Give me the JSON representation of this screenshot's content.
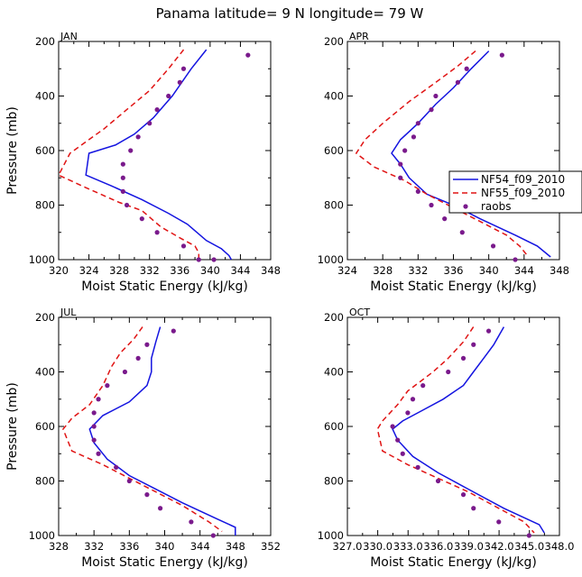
{
  "figure": {
    "title": "Panama  latitude= 9 N longitude= 79 W",
    "xlabel": "Moist Static Energy (kJ/kg)",
    "ylabel": "Pressure (mb)"
  },
  "legend": {
    "entries": [
      {
        "name": "NF54_f09_2010",
        "color": "#1414e0",
        "style": "solid"
      },
      {
        "name": "NF55_f09_2010",
        "color": "#e01414",
        "style": "dashed"
      },
      {
        "name": "raobs",
        "color": "#7a1a8c",
        "style": "dots"
      }
    ]
  },
  "chart_data": [
    {
      "type": "line",
      "panel": "JAN",
      "xlim": [
        320,
        348
      ],
      "ylim": [
        1000,
        200
      ],
      "xticks": [
        320,
        324,
        328,
        332,
        336,
        340,
        344,
        348
      ],
      "xtick_labels": [
        "320",
        "324",
        "328",
        "332",
        "336",
        "340",
        "344",
        "348"
      ],
      "yticks": [
        200,
        400,
        600,
        800,
        1000
      ],
      "ytick_labels": [
        "200",
        "400",
        "600",
        "800",
        "1000"
      ],
      "series": [
        {
          "name": "NF54_f09_2010",
          "points": [
            [
              339.5,
              230
            ],
            [
              337.5,
              300
            ],
            [
              335,
              400
            ],
            [
              332.5,
              480
            ],
            [
              330,
              540
            ],
            [
              327.5,
              580
            ],
            [
              324,
              610
            ],
            [
              323.6,
              690
            ],
            [
              327,
              730
            ],
            [
              331,
              780
            ],
            [
              334.5,
              830
            ],
            [
              337,
              870
            ],
            [
              339.5,
              930
            ],
            [
              341.5,
              960
            ],
            [
              342.5,
              985
            ],
            [
              342.8,
              1000
            ]
          ]
        },
        {
          "name": "NF55_f09_2010",
          "points": [
            [
              336.5,
              230
            ],
            [
              334.5,
              300
            ],
            [
              332,
              380
            ],
            [
              329,
              450
            ],
            [
              326,
              520
            ],
            [
              323,
              580
            ],
            [
              321.5,
              610
            ],
            [
              320,
              690
            ],
            [
              323.5,
              735
            ],
            [
              328,
              790
            ],
            [
              331,
              820
            ],
            [
              333.5,
              880
            ],
            [
              336,
              920
            ],
            [
              338,
              950
            ],
            [
              338.5,
              975
            ],
            [
              338.5,
              1000
            ]
          ]
        },
        {
          "name": "raobs",
          "points": [
            [
              345,
              250
            ],
            [
              336.5,
              300
            ],
            [
              336,
              350
            ],
            [
              334.5,
              400
            ],
            [
              333,
              450
            ],
            [
              332,
              500
            ],
            [
              330.5,
              550
            ],
            [
              329.5,
              600
            ],
            [
              328.5,
              650
            ],
            [
              328.5,
              700
            ],
            [
              328.5,
              750
            ],
            [
              329,
              800
            ],
            [
              331,
              850
            ],
            [
              333,
              900
            ],
            [
              336.5,
              950
            ],
            [
              338.5,
              1000
            ],
            [
              340.5,
              1000
            ]
          ]
        }
      ]
    },
    {
      "type": "line",
      "panel": "APR",
      "xlim": [
        324,
        348
      ],
      "ylim": [
        1000,
        200
      ],
      "xticks": [
        324,
        328,
        332,
        336,
        340,
        344,
        348
      ],
      "xtick_labels": [
        "324",
        "328",
        "332",
        "336",
        "340",
        "344",
        "348"
      ],
      "yticks": [
        200,
        400,
        600,
        800,
        1000
      ],
      "ytick_labels": [
        "200",
        "400",
        "600",
        "800",
        "1000"
      ],
      "series": [
        {
          "name": "NF54_f09_2010",
          "points": [
            [
              340,
              235
            ],
            [
              338,
              300
            ],
            [
              336,
              370
            ],
            [
              334,
              430
            ],
            [
              332,
              500
            ],
            [
              330,
              560
            ],
            [
              329,
              610
            ],
            [
              330,
              650
            ],
            [
              331,
              700
            ],
            [
              333,
              760
            ],
            [
              336,
              800
            ],
            [
              339,
              850
            ],
            [
              343,
              910
            ],
            [
              345.5,
              950
            ],
            [
              347,
              990
            ]
          ]
        },
        {
          "name": "NF55_f09_2010",
          "points": [
            [
              338.5,
              235
            ],
            [
              336.5,
              290
            ],
            [
              334,
              350
            ],
            [
              331,
              420
            ],
            [
              328,
              500
            ],
            [
              326,
              560
            ],
            [
              325,
              610
            ],
            [
              327,
              660
            ],
            [
              330.5,
              710
            ],
            [
              333,
              760
            ],
            [
              336,
              810
            ],
            [
              339,
              860
            ],
            [
              342,
              910
            ],
            [
              343.5,
              950
            ],
            [
              344.5,
              990
            ]
          ]
        },
        {
          "name": "raobs",
          "points": [
            [
              341.5,
              250
            ],
            [
              337.5,
              300
            ],
            [
              336.5,
              350
            ],
            [
              334,
              400
            ],
            [
              333.5,
              450
            ],
            [
              332,
              500
            ],
            [
              331.5,
              550
            ],
            [
              330.5,
              600
            ],
            [
              330,
              650
            ],
            [
              330,
              700
            ],
            [
              332,
              750
            ],
            [
              333.5,
              800
            ],
            [
              335,
              850
            ],
            [
              337,
              900
            ],
            [
              340.5,
              950
            ],
            [
              343,
              1000
            ]
          ]
        }
      ]
    },
    {
      "type": "line",
      "panel": "JUL",
      "xlim": [
        328,
        352
      ],
      "ylim": [
        1000,
        200
      ],
      "xticks": [
        328,
        332,
        336,
        340,
        344,
        348,
        352
      ],
      "xtick_labels": [
        "328",
        "332",
        "336",
        "340",
        "344",
        "348",
        "352"
      ],
      "yticks": [
        200,
        400,
        600,
        800,
        1000
      ],
      "ytick_labels": [
        "200",
        "400",
        "600",
        "800",
        "1000"
      ],
      "series": [
        {
          "name": "NF54_f09_2010",
          "points": [
            [
              339.5,
              235
            ],
            [
              339,
              290
            ],
            [
              338.5,
              350
            ],
            [
              338.5,
              400
            ],
            [
              338,
              450
            ],
            [
              336,
              510
            ],
            [
              333,
              560
            ],
            [
              331.5,
              610
            ],
            [
              332,
              660
            ],
            [
              333.5,
              720
            ],
            [
              336,
              780
            ],
            [
              339,
              830
            ],
            [
              342,
              880
            ],
            [
              346,
              940
            ],
            [
              348,
              970
            ],
            [
              348,
              1000
            ]
          ]
        },
        {
          "name": "NF55_f09_2010",
          "points": [
            [
              337.5,
              235
            ],
            [
              336.5,
              280
            ],
            [
              335,
              330
            ],
            [
              334,
              380
            ],
            [
              333,
              450
            ],
            [
              331.5,
              520
            ],
            [
              329.5,
              570
            ],
            [
              328.5,
              610
            ],
            [
              329.5,
              690
            ],
            [
              333,
              740
            ],
            [
              336,
              790
            ],
            [
              339,
              840
            ],
            [
              342,
              890
            ],
            [
              345,
              950
            ],
            [
              346.5,
              985
            ]
          ]
        },
        {
          "name": "raobs",
          "points": [
            [
              341,
              250
            ],
            [
              338,
              300
            ],
            [
              337,
              350
            ],
            [
              335.5,
              400
            ],
            [
              333.5,
              450
            ],
            [
              332.5,
              500
            ],
            [
              332,
              550
            ],
            [
              332,
              600
            ],
            [
              332,
              650
            ],
            [
              332.5,
              700
            ],
            [
              334.5,
              750
            ],
            [
              336,
              800
            ],
            [
              338,
              850
            ],
            [
              339.5,
              900
            ],
            [
              343,
              950
            ],
            [
              345.5,
              1000
            ]
          ]
        }
      ]
    },
    {
      "type": "line",
      "panel": "OCT",
      "xlim": [
        327.03,
        348
      ],
      "ylim": [
        1000,
        200
      ],
      "xticks": [
        327.03,
        330.03,
        333.03,
        336.03,
        339.03,
        342.03,
        345.03,
        348
      ],
      "xtick_labels": [
        "327.0",
        "330.0",
        "333.0",
        "336.0",
        "339.0",
        "342.0",
        "345.0",
        "348.0"
      ],
      "tick_label_note": "327.0330.0333.0336.0339.0342.0345.0348.0",
      "yticks": [
        200,
        400,
        600,
        800,
        1000
      ],
      "ytick_labels": [
        "200",
        "400",
        "600",
        "800",
        "1000"
      ],
      "series": [
        {
          "name": "NF54_f09_2010",
          "points": [
            [
              342.5,
              235
            ],
            [
              341.5,
              300
            ],
            [
              340.5,
              350
            ],
            [
              339.5,
              400
            ],
            [
              338.5,
              450
            ],
            [
              336.5,
              500
            ],
            [
              334.5,
              540
            ],
            [
              332.5,
              580
            ],
            [
              331.5,
              610
            ],
            [
              332,
              650
            ],
            [
              333.5,
              710
            ],
            [
              336,
              770
            ],
            [
              339,
              830
            ],
            [
              342.5,
              900
            ],
            [
              346,
              960
            ],
            [
              346.5,
              990
            ]
          ]
        },
        {
          "name": "NF55_f09_2010",
          "points": [
            [
              339.5,
              235
            ],
            [
              338.5,
              290
            ],
            [
              337,
              350
            ],
            [
              335.5,
              400
            ],
            [
              333,
              470
            ],
            [
              332,
              520
            ],
            [
              330.5,
              580
            ],
            [
              330,
              610
            ],
            [
              330.5,
              690
            ],
            [
              333,
              740
            ],
            [
              336,
              790
            ],
            [
              339,
              840
            ],
            [
              342,
              900
            ],
            [
              344.5,
              950
            ],
            [
              345.5,
              990
            ]
          ]
        },
        {
          "name": "raobs",
          "points": [
            [
              341,
              250
            ],
            [
              339.5,
              300
            ],
            [
              338.5,
              350
            ],
            [
              337,
              400
            ],
            [
              334.5,
              450
            ],
            [
              333.5,
              500
            ],
            [
              333,
              550
            ],
            [
              331.5,
              600
            ],
            [
              332,
              650
            ],
            [
              332.5,
              700
            ],
            [
              334,
              750
            ],
            [
              336,
              800
            ],
            [
              338.5,
              850
            ],
            [
              339.5,
              900
            ],
            [
              342,
              950
            ],
            [
              345,
              1000
            ]
          ]
        }
      ]
    }
  ]
}
